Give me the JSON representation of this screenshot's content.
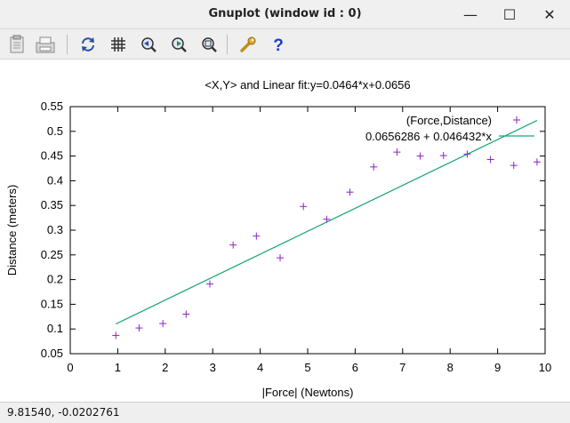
{
  "window": {
    "title": "Gnuplot (window id : 0)",
    "minimize_glyph": "—",
    "maximize_glyph": "☐",
    "close_glyph": "✕"
  },
  "toolbar": {
    "items": [
      "clipboard-icon",
      "print-icon",
      "replot-icon",
      "grid-icon",
      "zoom-previous-icon",
      "zoom-next-icon",
      "autoscale-icon",
      "options-wrench-icon",
      "help-icon"
    ],
    "help_glyph": "?"
  },
  "status": {
    "coords": "9.81540, -0.0202761"
  },
  "colors": {
    "points": "#8b22c9",
    "fit_line": "#1aa37a",
    "help": "#1a3ec9"
  },
  "chart_data": {
    "type": "scatter",
    "title": "<X,Y> and Linear fit:y=0.0464*x+0.0656",
    "xlabel": "|Force| (Newtons)",
    "ylabel": "Distance (meters)",
    "xlim": [
      0,
      10
    ],
    "ylim": [
      0.05,
      0.55
    ],
    "xticks": [
      0,
      1,
      2,
      3,
      4,
      5,
      6,
      7,
      8,
      9,
      10
    ],
    "yticks": [
      0.05,
      0.1,
      0.15,
      0.2,
      0.25,
      0.3,
      0.35,
      0.4,
      0.45,
      0.5,
      0.55
    ],
    "grid": false,
    "legend_placement": "top-right",
    "series": [
      {
        "name": "(Force,Distance)",
        "kind": "points",
        "x": [
          0.96,
          1.45,
          1.95,
          2.44,
          2.94,
          3.43,
          3.92,
          4.42,
          4.91,
          5.4,
          5.89,
          6.39,
          6.88,
          7.37,
          7.86,
          8.36,
          8.85,
          9.34,
          9.83
        ],
        "y": [
          0.087,
          0.102,
          0.111,
          0.13,
          0.191,
          0.27,
          0.288,
          0.244,
          0.348,
          0.322,
          0.377,
          0.428,
          0.458,
          0.45,
          0.451,
          0.454,
          0.443,
          0.431,
          0.438
        ]
      },
      {
        "name": "0.0656286 + 0.046432*x",
        "kind": "line",
        "intercept": 0.0656286,
        "slope": 0.046432,
        "x_range": [
          0.96,
          9.83
        ]
      }
    ]
  }
}
